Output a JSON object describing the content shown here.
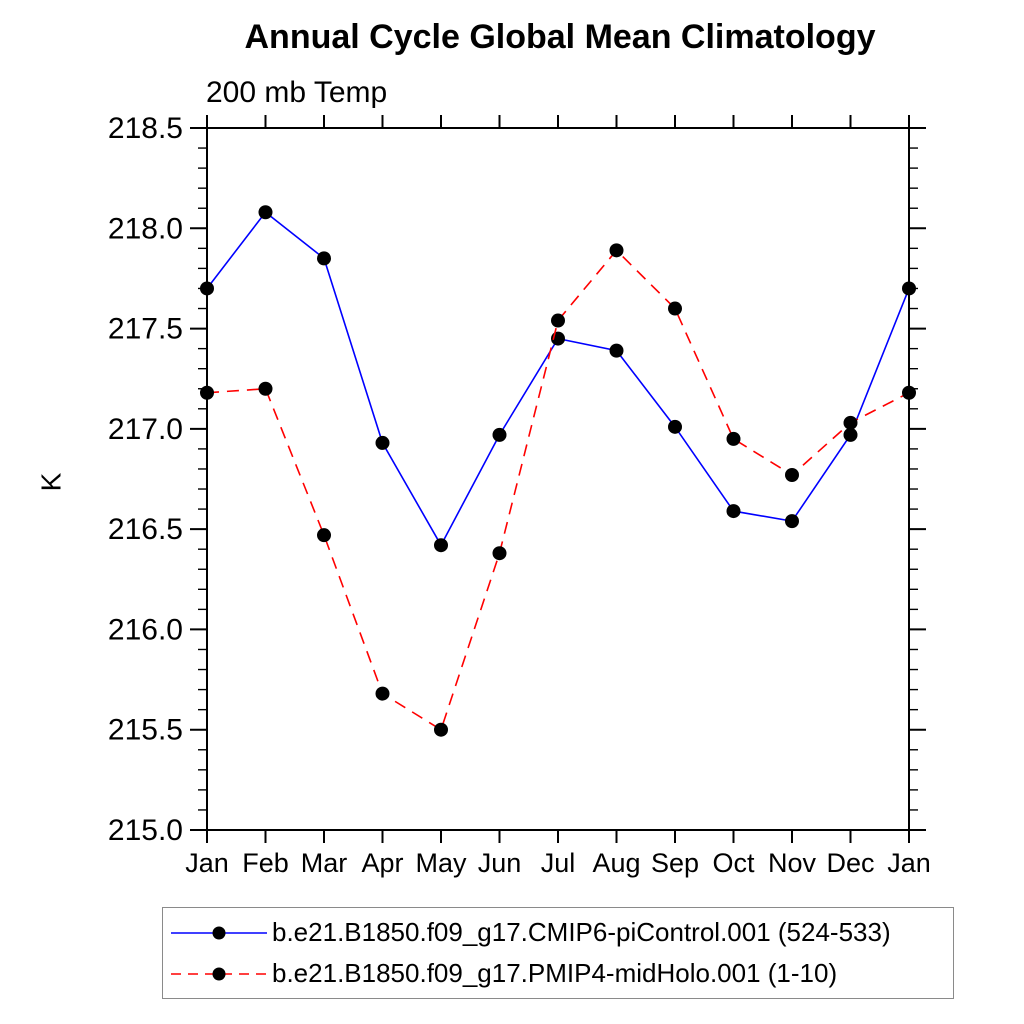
{
  "page": {
    "background": "#ffffff"
  },
  "chart_data": {
    "type": "line",
    "title": "Annual Cycle Global Mean Climatology",
    "subtitle": "200 mb Temp",
    "xlabel": "",
    "ylabel": "K",
    "x_categories": [
      "Jan",
      "Feb",
      "Mar",
      "Apr",
      "May",
      "Jun",
      "Jul",
      "Aug",
      "Sep",
      "Oct",
      "Nov",
      "Dec",
      "Jan"
    ],
    "ylim": [
      215.0,
      218.5
    ],
    "ytick_major_step": 0.5,
    "ytick_minor_step": 0.1,
    "ytick_labels": [
      "215.0",
      "215.5",
      "216.0",
      "216.5",
      "217.0",
      "217.5",
      "218.0",
      "218.5"
    ],
    "grid": false,
    "frame": "box-with-outward-ticks",
    "legend_position": "bottom-boxed",
    "marker": "filled-circle",
    "marker_color": "#000000",
    "series": [
      {
        "name": "b.e21.B1850.f09_g17.CMIP6-piControl.001 (524-533)",
        "color": "#0000ff",
        "line_style": "solid",
        "values": [
          217.7,
          218.08,
          217.85,
          216.93,
          216.42,
          216.97,
          217.45,
          217.39,
          217.01,
          216.59,
          216.54,
          216.97,
          217.7
        ]
      },
      {
        "name": "b.e21.B1850.f09_g17.PMIP4-midHolo.001 (1-10)",
        "color": "#ff0000",
        "line_style": "dashed",
        "values": [
          217.18,
          217.2,
          216.47,
          215.68,
          215.5,
          216.38,
          217.54,
          217.89,
          217.6,
          216.95,
          216.77,
          217.03,
          217.18
        ]
      }
    ]
  }
}
